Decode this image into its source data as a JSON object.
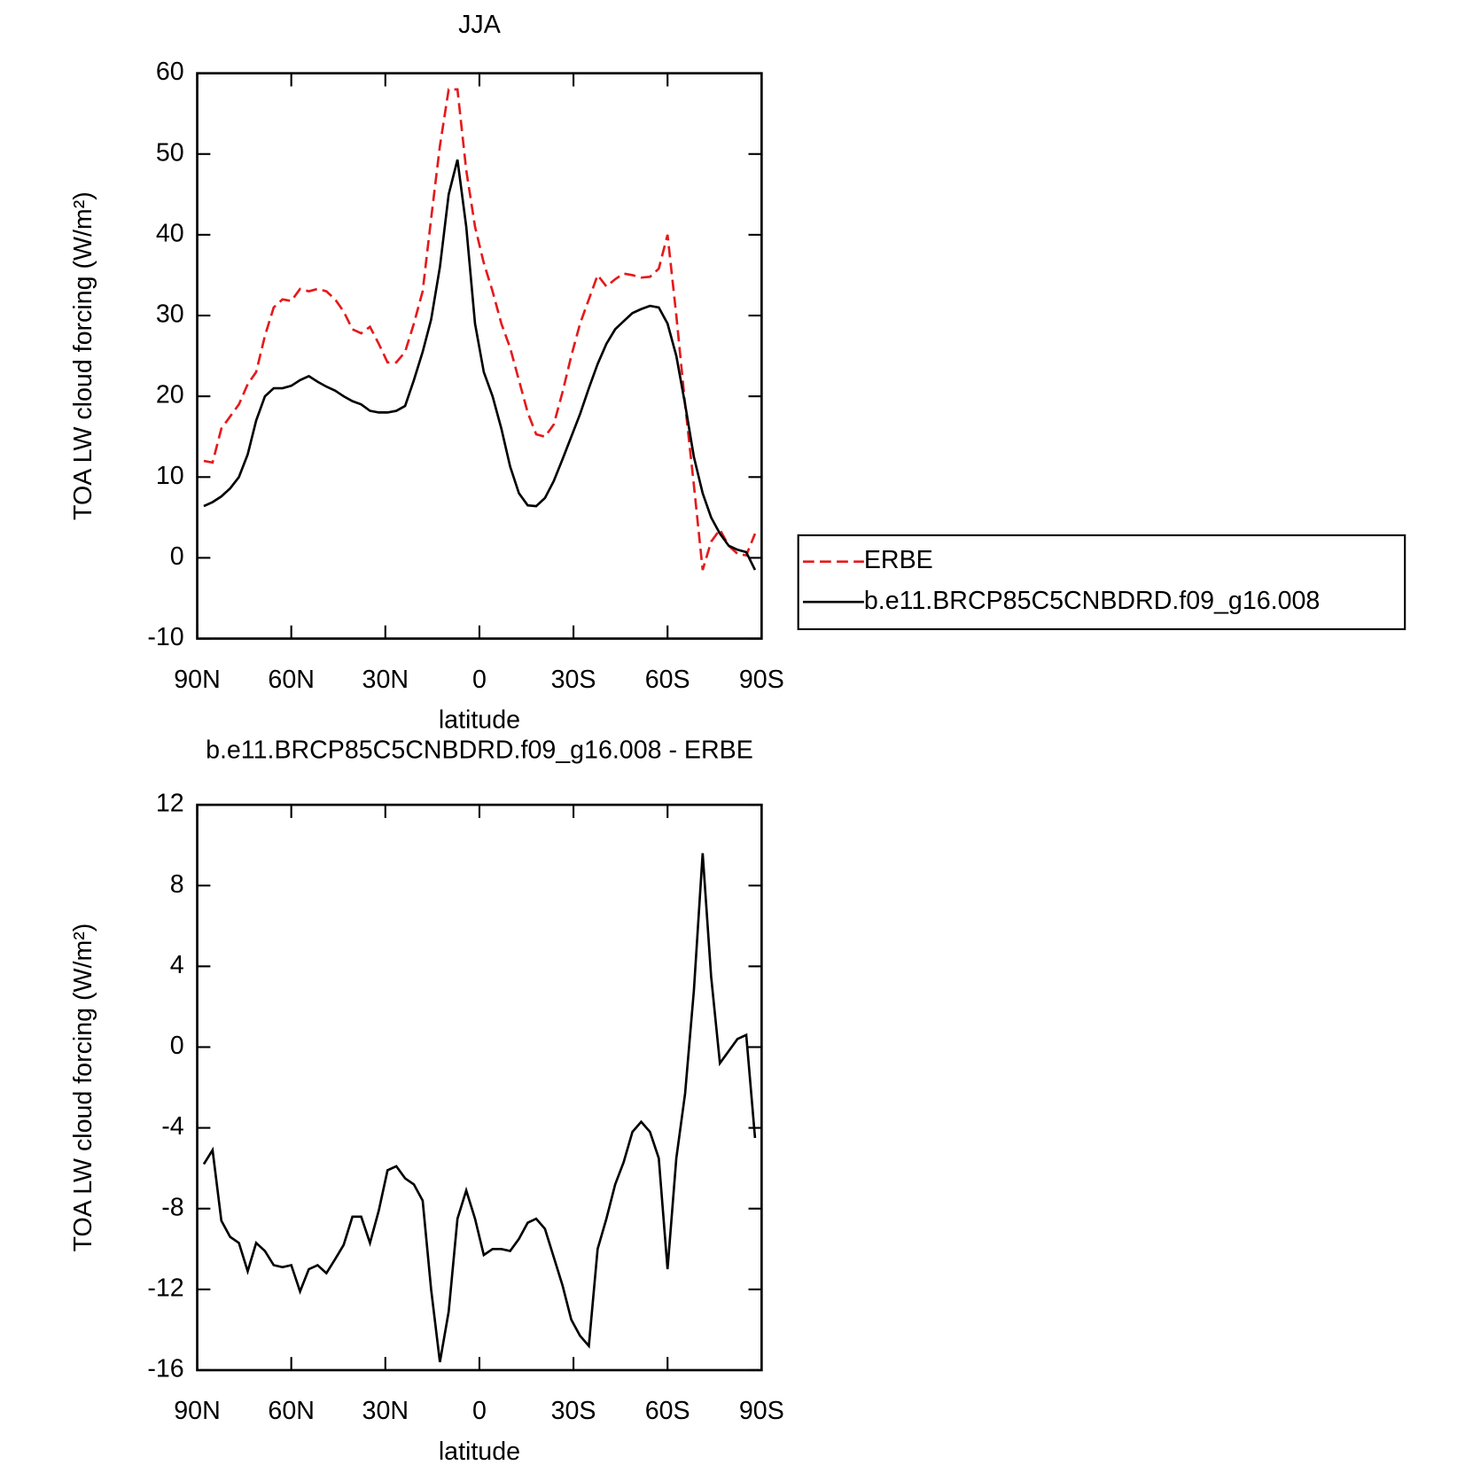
{
  "chart_data": [
    {
      "type": "line",
      "title": "JJA",
      "xlabel": "latitude",
      "ylabel": "TOA LW cloud forcing (W/m²)",
      "x": [
        87.9,
        85.1,
        82.3,
        79.5,
        76.7,
        73.9,
        71.2,
        68.4,
        65.6,
        62.8,
        60.0,
        57.2,
        54.4,
        51.6,
        48.8,
        46.0,
        43.3,
        40.5,
        37.7,
        34.9,
        32.1,
        29.3,
        26.5,
        23.7,
        20.9,
        18.1,
        15.4,
        12.6,
        9.8,
        7.0,
        4.2,
        1.4,
        -1.4,
        -4.2,
        -7.0,
        -9.8,
        -12.6,
        -15.4,
        -18.1,
        -20.9,
        -23.7,
        -26.5,
        -29.3,
        -32.1,
        -34.9,
        -37.7,
        -40.5,
        -43.3,
        -46.0,
        -48.8,
        -51.6,
        -54.4,
        -57.2,
        -60.0,
        -62.8,
        -65.6,
        -68.4,
        -71.2,
        -73.9,
        -76.7,
        -79.5,
        -82.3,
        -85.1,
        -87.9
      ],
      "xlim": [
        90,
        -90
      ],
      "xticks": [
        {
          "value": 90,
          "label": "90N"
        },
        {
          "value": 60,
          "label": "60N"
        },
        {
          "value": 30,
          "label": "30N"
        },
        0,
        {
          "value": -30,
          "label": "30S"
        },
        {
          "value": -60,
          "label": "60S"
        },
        {
          "value": -90,
          "label": "90S"
        }
      ],
      "ylim": [
        -10,
        60
      ],
      "yticks": [
        -10,
        0,
        10,
        20,
        30,
        40,
        50,
        60
      ],
      "legend": "right",
      "series": [
        {
          "name": "ERBE",
          "color": "#e41a1c",
          "linestyle": "dashed",
          "values": [
            12,
            11.8,
            16,
            17.5,
            19,
            21.5,
            23,
            27.5,
            31,
            32,
            31.8,
            33.3,
            33,
            33.3,
            33,
            32,
            30.5,
            28.3,
            27.8,
            28.6,
            26.5,
            24.2,
            24.2,
            25.5,
            29,
            33,
            42,
            51,
            58,
            58,
            48,
            41,
            36.5,
            33,
            29,
            26,
            22,
            18,
            15.3,
            15,
            16.5,
            20.5,
            25,
            29,
            32,
            35,
            33.6,
            34.5,
            35.2,
            35,
            34.7,
            34.8,
            35.8,
            40,
            30,
            19,
            9,
            -1.5,
            2,
            3.5,
            1.5,
            0.5,
            0.3,
            3
          ]
        },
        {
          "name": "b.e11.BRCP85C5CNBDRD.f09_g16.008",
          "color": "#000000",
          "linestyle": "solid",
          "values": [
            6.4,
            6.9,
            7.6,
            8.6,
            10,
            12.8,
            17,
            20,
            21,
            21,
            21.3,
            22,
            22.5,
            21.8,
            21.2,
            20.7,
            20,
            19.4,
            19,
            18.2,
            18,
            18,
            18.2,
            18.8,
            22,
            25.5,
            29.5,
            36,
            45,
            49.3,
            41,
            29,
            23,
            20,
            16,
            11.3,
            8,
            6.5,
            6.4,
            7.4,
            9.5,
            12.2,
            15,
            17.8,
            21,
            24,
            26.5,
            28.3,
            29.3,
            30.3,
            30.8,
            31.2,
            31,
            29,
            25,
            19,
            12.5,
            8,
            5,
            3,
            1.5,
            1,
            0.7,
            -1.5
          ]
        }
      ]
    },
    {
      "type": "line",
      "title": "b.e11.BRCP85C5CNBDRD.f09_g16.008 - ERBE",
      "xlabel": "latitude",
      "ylabel": "TOA LW cloud forcing (W/m²)",
      "x": [
        87.9,
        85.1,
        82.3,
        79.5,
        76.7,
        73.9,
        71.2,
        68.4,
        65.6,
        62.8,
        60.0,
        57.2,
        54.4,
        51.6,
        48.8,
        46.0,
        43.3,
        40.5,
        37.7,
        34.9,
        32.1,
        29.3,
        26.5,
        23.7,
        20.9,
        18.1,
        15.4,
        12.6,
        9.8,
        7.0,
        4.2,
        1.4,
        -1.4,
        -4.2,
        -7.0,
        -9.8,
        -12.6,
        -15.4,
        -18.1,
        -20.9,
        -23.7,
        -26.5,
        -29.3,
        -32.1,
        -34.9,
        -37.7,
        -40.5,
        -43.3,
        -46.0,
        -48.8,
        -51.6,
        -54.4,
        -57.2,
        -60.0,
        -62.8,
        -65.6,
        -68.4,
        -71.2,
        -73.9,
        -76.7,
        -79.5,
        -82.3,
        -85.1,
        -87.9
      ],
      "xlim": [
        90,
        -90
      ],
      "xticks": [
        {
          "value": 90,
          "label": "90N"
        },
        {
          "value": 60,
          "label": "60N"
        },
        {
          "value": 30,
          "label": "30N"
        },
        0,
        {
          "value": -30,
          "label": "30S"
        },
        {
          "value": -60,
          "label": "60S"
        },
        {
          "value": -90,
          "label": "90S"
        }
      ],
      "ylim": [
        -16,
        12
      ],
      "yticks": [
        -16,
        -12,
        -8,
        -4,
        0,
        4,
        8,
        12
      ],
      "series": [
        {
          "color": "#000000",
          "linestyle": "solid",
          "values": [
            -5.8,
            -5.1,
            -8.6,
            -9.4,
            -9.7,
            -11.1,
            -9.7,
            -10.1,
            -10.8,
            -10.9,
            -10.8,
            -12.1,
            -11.0,
            -10.8,
            -11.2,
            -10.5,
            -9.8,
            -8.4,
            -8.4,
            -9.7,
            -8.1,
            -6.1,
            -5.9,
            -6.5,
            -6.8,
            -7.6,
            -12.0,
            -15.6,
            -13.1,
            -8.5,
            -7.1,
            -8.5,
            -10.3,
            -10.0,
            -10.0,
            -10.1,
            -9.5,
            -8.7,
            -8.5,
            -9.0,
            -10.4,
            -11.8,
            -13.5,
            -14.3,
            -14.8,
            -10.0,
            -8.5,
            -6.8,
            -5.7,
            -4.2,
            -3.7,
            -4.2,
            -5.5,
            -11.0,
            -5.5,
            -2.3,
            2.8,
            9.6,
            3.5,
            -0.8,
            -0.2,
            0.4,
            0.6,
            -4.5
          ]
        }
      ]
    }
  ]
}
